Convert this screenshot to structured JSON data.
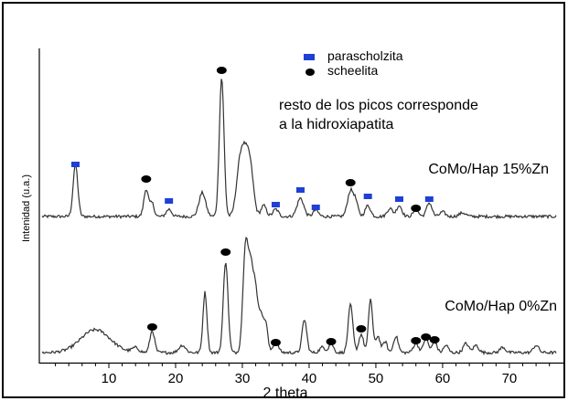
{
  "chart_data": {
    "type": "line",
    "xlabel": "2 theta",
    "ylabel": "Intenidad (u.a.)",
    "xlim": [
      0,
      77
    ],
    "xticks": [
      10,
      20,
      30,
      40,
      50,
      60,
      70
    ],
    "grid": false,
    "legend": {
      "position": "top-right",
      "entries": [
        {
          "label": "parascholzita",
          "marker": "square",
          "color": "#1f3fd6"
        },
        {
          "label": "scheelita",
          "marker": "ellipse",
          "color": "#000000"
        }
      ]
    },
    "annotation": {
      "line1": "resto de los picos  corresponde",
      "line2": "a la hidroxiapatita"
    },
    "series": [
      {
        "name": "CoMo/Hap 15%Zn",
        "color": "#333333",
        "baseline": 237,
        "noise": 1.6,
        "peaks": [
          [
            5,
            57,
            0.35
          ],
          [
            15.6,
            30,
            0.35
          ],
          [
            16.5,
            14,
            0.3
          ],
          [
            19,
            8,
            0.4
          ],
          [
            24,
            26,
            0.5
          ],
          [
            26.9,
            152,
            0.35
          ],
          [
            29.5,
            40,
            0.5
          ],
          [
            30.3,
            60,
            0.55
          ],
          [
            31.2,
            48,
            0.5
          ],
          [
            33.2,
            12,
            0.4
          ],
          [
            35,
            8,
            0.4
          ],
          [
            38.7,
            20,
            0.5
          ],
          [
            41,
            7,
            0.4
          ],
          [
            46.2,
            28,
            0.45
          ],
          [
            47,
            14,
            0.35
          ],
          [
            48.8,
            12,
            0.4
          ],
          [
            52.1,
            9,
            0.4
          ],
          [
            53.5,
            12,
            0.4
          ],
          [
            56,
            7,
            0.4
          ],
          [
            58,
            15,
            0.4
          ],
          [
            60,
            5,
            0.4
          ],
          [
            63,
            4,
            0.5
          ]
        ],
        "markers": [
          {
            "x": 5,
            "type": "square",
            "y": 180
          },
          {
            "x": 15.6,
            "type": "ellipse",
            "y": 196
          },
          {
            "x": 19,
            "type": "square",
            "y": 220
          },
          {
            "x": 26.9,
            "type": "ellipse",
            "y": 77
          },
          {
            "x": 35,
            "type": "square",
            "y": 224
          },
          {
            "x": 38.7,
            "type": "square",
            "y": 208
          },
          {
            "x": 41,
            "type": "square",
            "y": 227
          },
          {
            "x": 46.2,
            "type": "ellipse",
            "y": 200
          },
          {
            "x": 48.8,
            "type": "square",
            "y": 215
          },
          {
            "x": 53.5,
            "type": "square",
            "y": 218
          },
          {
            "x": 56,
            "type": "ellipse",
            "y": 228
          },
          {
            "x": 58,
            "type": "square",
            "y": 218
          }
        ]
      },
      {
        "name": "CoMo/Hap 0%Zn",
        "color": "#333333",
        "baseline": 386,
        "noise": 1.6,
        "peaks": [
          [
            8,
            25,
            2.2
          ],
          [
            14,
            5,
            0.5
          ],
          [
            16.5,
            24,
            0.35
          ],
          [
            21,
            8,
            0.5
          ],
          [
            24.4,
            66,
            0.3
          ],
          [
            27.5,
            100,
            0.35
          ],
          [
            30.5,
            120,
            0.4
          ],
          [
            31.3,
            80,
            0.35
          ],
          [
            32,
            66,
            0.35
          ],
          [
            32.8,
            40,
            0.3
          ],
          [
            33.5,
            33,
            0.3
          ],
          [
            35,
            12,
            0.4
          ],
          [
            39.3,
            36,
            0.35
          ],
          [
            42,
            6,
            0.4
          ],
          [
            43.3,
            10,
            0.35
          ],
          [
            46.2,
            52,
            0.35
          ],
          [
            47.8,
            20,
            0.35
          ],
          [
            49.2,
            59,
            0.3
          ],
          [
            50.3,
            18,
            0.35
          ],
          [
            51.4,
            12,
            0.3
          ],
          [
            53,
            18,
            0.35
          ],
          [
            56,
            10,
            0.4
          ],
          [
            57.5,
            16,
            0.35
          ],
          [
            58.8,
            12,
            0.35
          ],
          [
            60.5,
            8,
            0.35
          ],
          [
            63.5,
            10,
            0.4
          ],
          [
            65,
            8,
            0.4
          ],
          [
            69,
            6,
            0.4
          ],
          [
            74,
            8,
            0.4
          ]
        ],
        "markers": [
          {
            "x": 16.5,
            "type": "ellipse",
            "y": 358
          },
          {
            "x": 27.5,
            "type": "ellipse",
            "y": 276
          },
          {
            "x": 35,
            "type": "ellipse",
            "y": 375
          },
          {
            "x": 43.3,
            "type": "ellipse",
            "y": 374
          },
          {
            "x": 47.8,
            "type": "ellipse",
            "y": 360
          },
          {
            "x": 56,
            "type": "ellipse",
            "y": 373
          },
          {
            "x": 57.5,
            "type": "ellipse",
            "y": 369
          },
          {
            "x": 58.8,
            "type": "ellipse",
            "y": 372
          }
        ]
      }
    ]
  }
}
